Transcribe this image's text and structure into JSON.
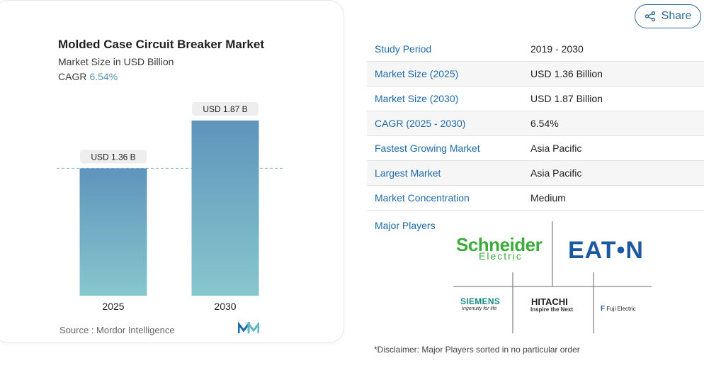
{
  "chart": {
    "title": "Molded Case Circuit Breaker Market",
    "subtitle": "Market Size in USD Billion",
    "cagr_label": "CAGR",
    "cagr_value": "6.54%",
    "source": "Source :  Mordor Intelligence"
  },
  "chart_data": {
    "type": "bar",
    "categories": [
      "2025",
      "2030"
    ],
    "values": [
      1.36,
      1.87
    ],
    "data_labels": [
      "USD 1.36 B",
      "USD 1.87 B"
    ],
    "title": "Molded Case Circuit Breaker Market",
    "subtitle": "Market Size in USD Billion",
    "xlabel": "",
    "ylabel": "",
    "ylim": [
      0,
      1.87
    ],
    "reference_line": 1.36,
    "grid": false,
    "bar_color_top": "#5f94bc",
    "bar_color_bottom": "#86c7cd"
  },
  "share": {
    "label": "Share",
    "icon": "share-icon"
  },
  "stats": [
    {
      "key": "Study Period",
      "value": "2019 - 2030"
    },
    {
      "key": "Market Size (2025)",
      "value": "USD 1.36 Billion"
    },
    {
      "key": "Market Size (2030)",
      "value": "USD 1.87 Billion"
    },
    {
      "key": "CAGR (2025 - 2030)",
      "value": "6.54%"
    },
    {
      "key": "Fastest Growing Market",
      "value": "Asia Pacific"
    },
    {
      "key": "Largest Market",
      "value": "Asia Pacific"
    },
    {
      "key": "Market Concentration",
      "value": "Medium"
    }
  ],
  "players": {
    "label": "Major Players",
    "logos": [
      {
        "name": "Schneider Electric",
        "line1": "Schneider",
        "line2": "Electric"
      },
      {
        "name": "Eaton",
        "text": "EAT•N"
      },
      {
        "name": "Siemens",
        "text": "SIEMENS",
        "tagline": "Ingenuity for life"
      },
      {
        "name": "Hitachi",
        "text": "HITACHI",
        "tagline": "Inspire the Next"
      },
      {
        "name": "Fuji Electric",
        "mark": "F",
        "text": "Fuji Electric"
      }
    ]
  },
  "disclaimer": "*Disclaimer: Major Players sorted in no particular order",
  "colors": {
    "accent": "#1e6aa8",
    "share_border": "#2c6a97"
  }
}
